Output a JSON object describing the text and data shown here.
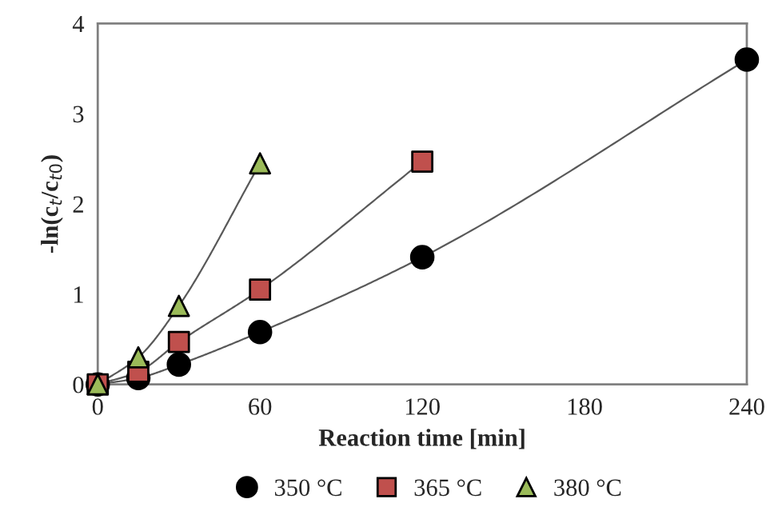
{
  "chart_data": {
    "type": "line",
    "xlabel": "Reaction time [min]",
    "ylabel": "-ln(c$_{t}$/c$_{t0}$)",
    "xlim": [
      0,
      240
    ],
    "xticks": [
      0,
      60,
      120,
      180,
      240
    ],
    "ylim": [
      0,
      4
    ],
    "yticks": [
      0,
      1,
      2,
      3,
      4
    ],
    "grid": false,
    "legend": "bottom",
    "series": [
      {
        "name": "350 °C",
        "color": "#000000",
        "marker": "circle",
        "x": [
          0,
          15,
          30,
          60,
          120,
          240
        ],
        "values": [
          0,
          0.07,
          0.22,
          0.58,
          1.41,
          3.6
        ]
      },
      {
        "name": "365 °C",
        "color": "#c0504d",
        "marker": "square",
        "x": [
          0,
          15,
          30,
          60,
          120
        ],
        "values": [
          0,
          0.14,
          0.47,
          1.05,
          2.47
        ]
      },
      {
        "name": "380 °C",
        "color": "#9bbb59",
        "marker": "triangle",
        "x": [
          0,
          15,
          30,
          60
        ],
        "values": [
          0,
          0.3,
          0.87,
          2.45
        ]
      }
    ]
  }
}
